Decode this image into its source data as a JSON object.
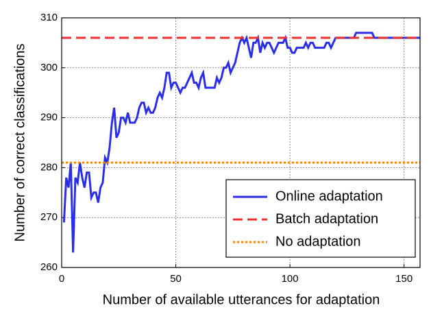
{
  "chart_data": {
    "type": "line",
    "xlabel": "Number of available utterances for adaptation",
    "ylabel": "Number of correct classifications",
    "xlim": [
      0,
      157
    ],
    "ylim": [
      260,
      310
    ],
    "xticks": [
      0,
      50,
      100,
      150
    ],
    "yticks": [
      260,
      270,
      280,
      290,
      300,
      310
    ],
    "grid": true,
    "legend": "lower right",
    "series": [
      {
        "name": "Online adaptation",
        "color": "#2a2ee8",
        "style": "solid",
        "x": [
          1,
          2,
          3,
          4,
          5,
          6,
          7,
          8,
          9,
          10,
          11,
          12,
          13,
          14,
          15,
          16,
          17,
          18,
          19,
          20,
          21,
          22,
          23,
          24,
          25,
          26,
          27,
          28,
          29,
          30,
          31,
          32,
          33,
          34,
          35,
          36,
          37,
          38,
          39,
          40,
          41,
          42,
          43,
          44,
          45,
          46,
          47,
          48,
          49,
          50,
          51,
          52,
          53,
          54,
          55,
          56,
          57,
          58,
          59,
          60,
          61,
          62,
          63,
          64,
          65,
          66,
          67,
          68,
          69,
          70,
          71,
          72,
          73,
          74,
          75,
          76,
          77,
          78,
          79,
          80,
          81,
          82,
          83,
          84,
          85,
          86,
          87,
          88,
          89,
          90,
          91,
          92,
          93,
          94,
          95,
          96,
          97,
          98,
          99,
          100,
          101,
          102,
          103,
          104,
          105,
          106,
          107,
          108,
          109,
          110,
          111,
          112,
          113,
          114,
          115,
          116,
          117,
          118,
          119,
          120,
          121,
          122,
          123,
          124,
          125,
          126,
          127,
          128,
          129,
          130,
          131,
          132,
          133,
          134,
          135,
          136,
          137,
          138,
          139,
          140,
          141,
          142,
          143,
          144,
          145,
          146,
          147,
          148,
          149,
          150,
          151,
          152,
          153,
          154,
          155,
          156,
          157
        ],
        "values": [
          269,
          278,
          276,
          281,
          263,
          278,
          277,
          281,
          278,
          276,
          279,
          279,
          274,
          275,
          275,
          273,
          276,
          277,
          282,
          281,
          284,
          289,
          292,
          286,
          287,
          290,
          290,
          289,
          291,
          289,
          289,
          289,
          290,
          292,
          293,
          293,
          291,
          292,
          291,
          291,
          292,
          294,
          295,
          294,
          296,
          299,
          299,
          296,
          297,
          297,
          296,
          295,
          296,
          296,
          297,
          298,
          299,
          297,
          297,
          296,
          298,
          299,
          296,
          296,
          296,
          296,
          296,
          298,
          297,
          298,
          300,
          300,
          301,
          299,
          300,
          301,
          303,
          305,
          306,
          305,
          306,
          304,
          302,
          305,
          305,
          306,
          303,
          305,
          304,
          305,
          305,
          304,
          303,
          304,
          305,
          305,
          305,
          306,
          304,
          304,
          303,
          303,
          304,
          304,
          304,
          304,
          305,
          304,
          305,
          305,
          304,
          304,
          304,
          304,
          304,
          305,
          305,
          304,
          305,
          306,
          306,
          306,
          306,
          306,
          306,
          306,
          306,
          306,
          307,
          307,
          307,
          307,
          307,
          307,
          307,
          307,
          306,
          306,
          306,
          306,
          306,
          306,
          306,
          306,
          306,
          306,
          306,
          306,
          306,
          306,
          306,
          306,
          306,
          306,
          306,
          306,
          306
        ]
      },
      {
        "name": "Batch adaptation",
        "color": "#f0302e",
        "style": "dashed",
        "x": [
          0,
          157
        ],
        "values": [
          306,
          306
        ]
      },
      {
        "name": "No adaptation",
        "color": "#f5860e",
        "style": "dotted",
        "x": [
          0,
          157
        ],
        "values": [
          281,
          281
        ]
      }
    ]
  }
}
